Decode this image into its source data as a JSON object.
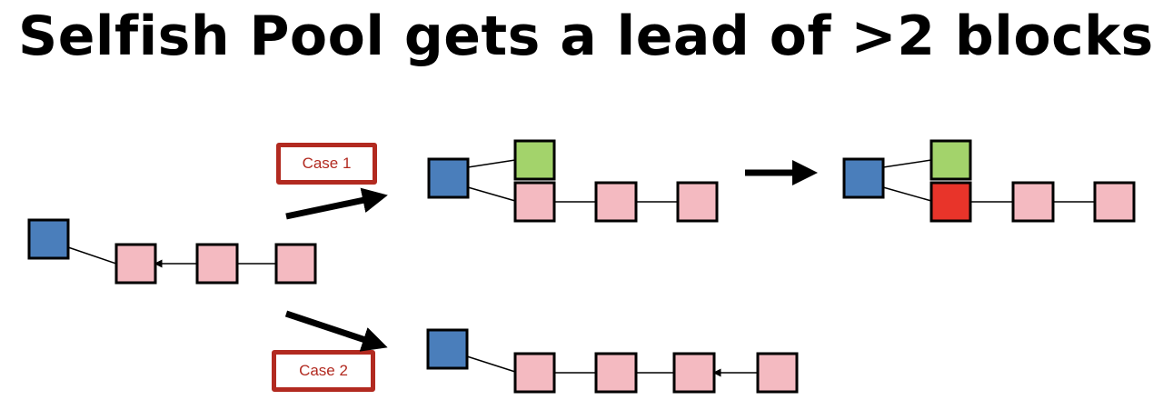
{
  "title": "Selfish Pool gets a lead of >2 blocks",
  "labels": {
    "case1": "Case 1",
    "case2": "Case 2"
  },
  "colors": {
    "blue": "#4a7ebb",
    "pink": "#f4bac1",
    "green": "#a3d36b",
    "red": "#e8342a",
    "label_red": "#b22a20"
  }
}
